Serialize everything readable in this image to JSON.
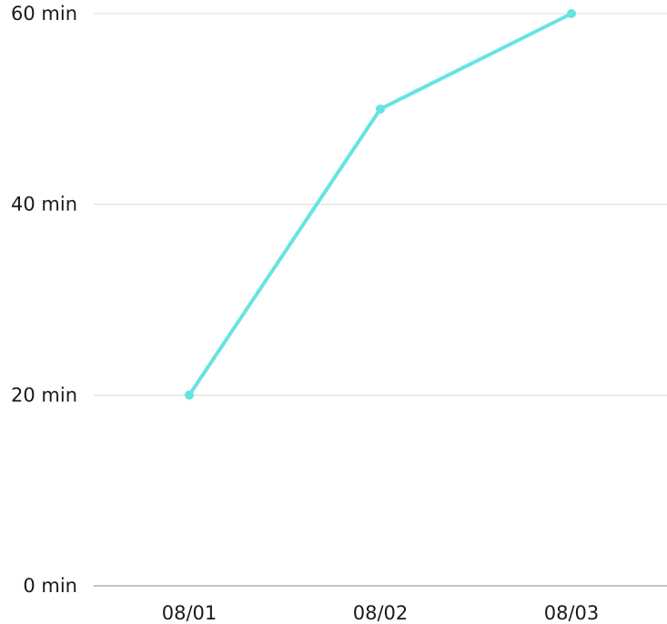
{
  "chart_data": {
    "type": "line",
    "categories": [
      "08/01",
      "08/02",
      "08/03"
    ],
    "series": [
      {
        "values": [
          20,
          50,
          60
        ]
      }
    ],
    "y_ticks": [
      {
        "value": 0,
        "label": "0 min"
      },
      {
        "value": 20,
        "label": "20 min"
      },
      {
        "value": 40,
        "label": "40 min"
      },
      {
        "value": 60,
        "label": "60 min"
      }
    ],
    "ylim": [
      0,
      60
    ],
    "grid": true,
    "colors": {
      "line": "#66E3E3",
      "grid": "#dddddd",
      "axis": "#8a8a8a",
      "text": "#1a1a1a"
    }
  }
}
